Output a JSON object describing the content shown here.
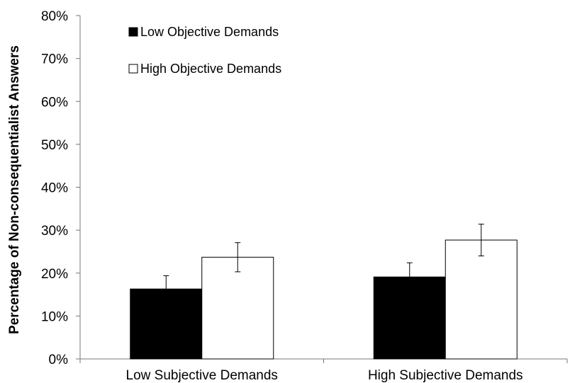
{
  "chart_data": {
    "type": "bar",
    "title": "",
    "xlabel": "",
    "ylabel": "Percentage of Non-consequentialist Answers",
    "ylim": [
      0,
      80
    ],
    "y_ticks": [
      0,
      10,
      20,
      30,
      40,
      50,
      60,
      70,
      80
    ],
    "y_tick_format": "percent",
    "categories": [
      "Low Subjective Demands",
      "High Subjective Demands"
    ],
    "series": [
      {
        "name": "Low Objective Demands",
        "color": "#000000",
        "values": [
          16.3,
          19.1
        ],
        "error": [
          3.1,
          3.3
        ]
      },
      {
        "name": "High Objective Demands",
        "color": "#ffffff",
        "values": [
          23.7,
          27.7
        ],
        "error": [
          3.4,
          3.7
        ]
      }
    ],
    "legend_position": "top-left",
    "grid": false
  }
}
